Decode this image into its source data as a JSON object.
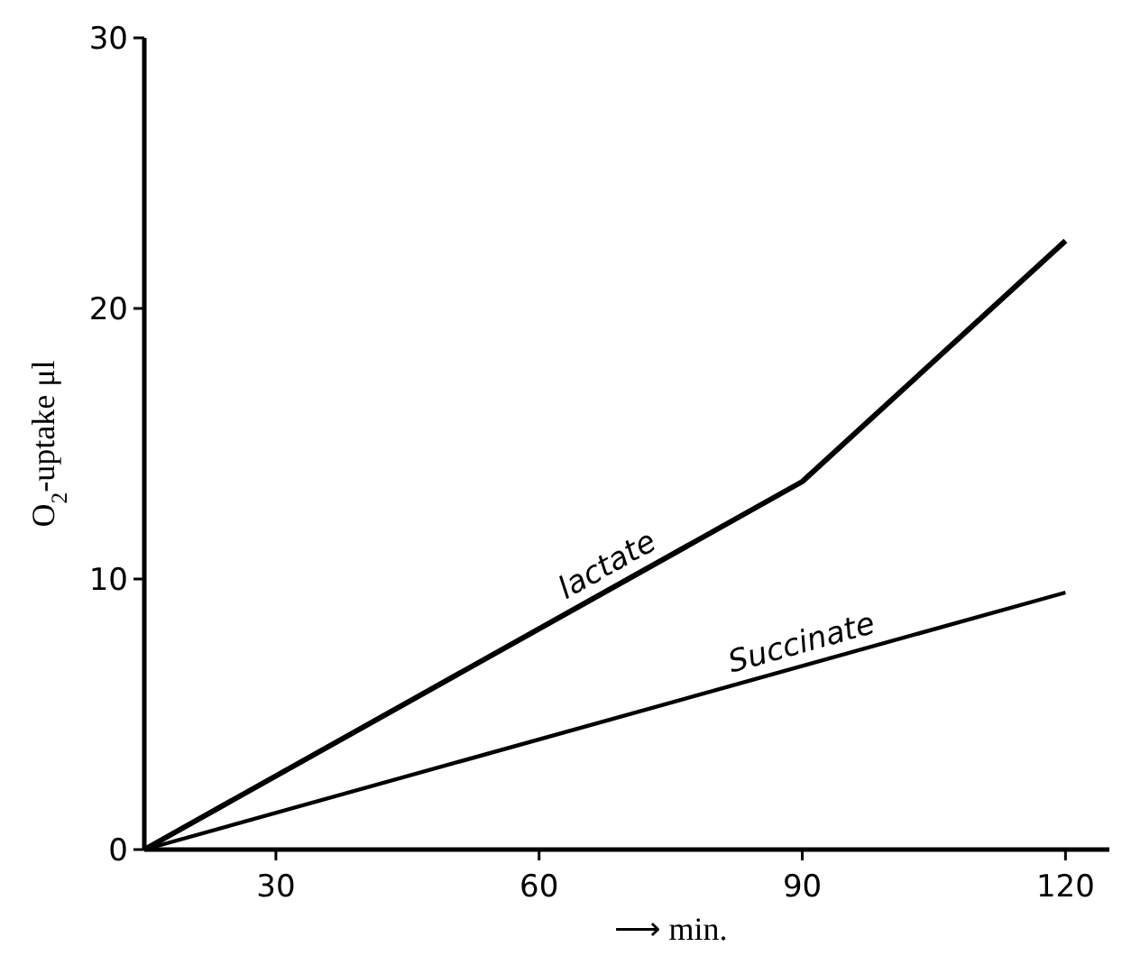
{
  "chart_data": {
    "type": "line",
    "xlabel": "⟶ min.",
    "ylabel": "O$_{2}$-uptake μl",
    "xlim": [
      15,
      125
    ],
    "xticks": [
      30,
      60,
      90,
      120
    ],
    "ylim": [
      0,
      30
    ],
    "yticks": [
      0,
      10,
      20,
      30
    ],
    "grid": false,
    "marker": "none",
    "line_style": "solid",
    "series": [
      {
        "name": "lactate",
        "color": "#000000",
        "x": [
          15,
          90,
          120
        ],
        "values": [
          0,
          13.6,
          22.5
        ]
      },
      {
        "name": "Succinate",
        "color": "#000000",
        "x": [
          15,
          120
        ],
        "values": [
          0,
          9.5
        ]
      }
    ]
  }
}
